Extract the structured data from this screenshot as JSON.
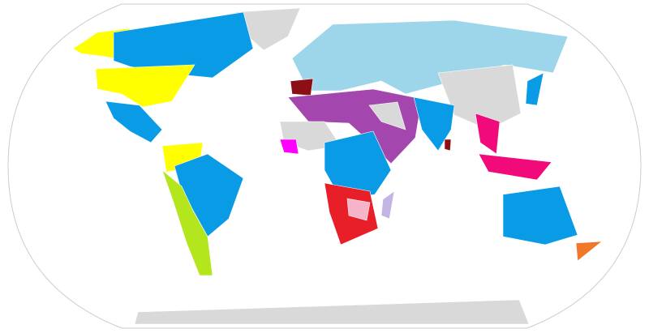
{
  "map": {
    "projection": "robinson",
    "colors": {
      "ocean": "#ffffff",
      "outline": "#cccccc",
      "no_data": "#d9d9d9",
      "yellow": "#ffff00",
      "blue": "#0a9be6",
      "light_blue": "#9dd6ea",
      "dark_red": "#8b0f14",
      "purple": "#a346ae",
      "red": "#e81e28",
      "pink": "#f5b4c8",
      "magenta": "#ff00ff",
      "hot_pink": "#f00a7a",
      "lime": "#b4e61e",
      "orange": "#f07828",
      "lavender": "#c4b4e4",
      "green": "#3c9a5c"
    }
  }
}
